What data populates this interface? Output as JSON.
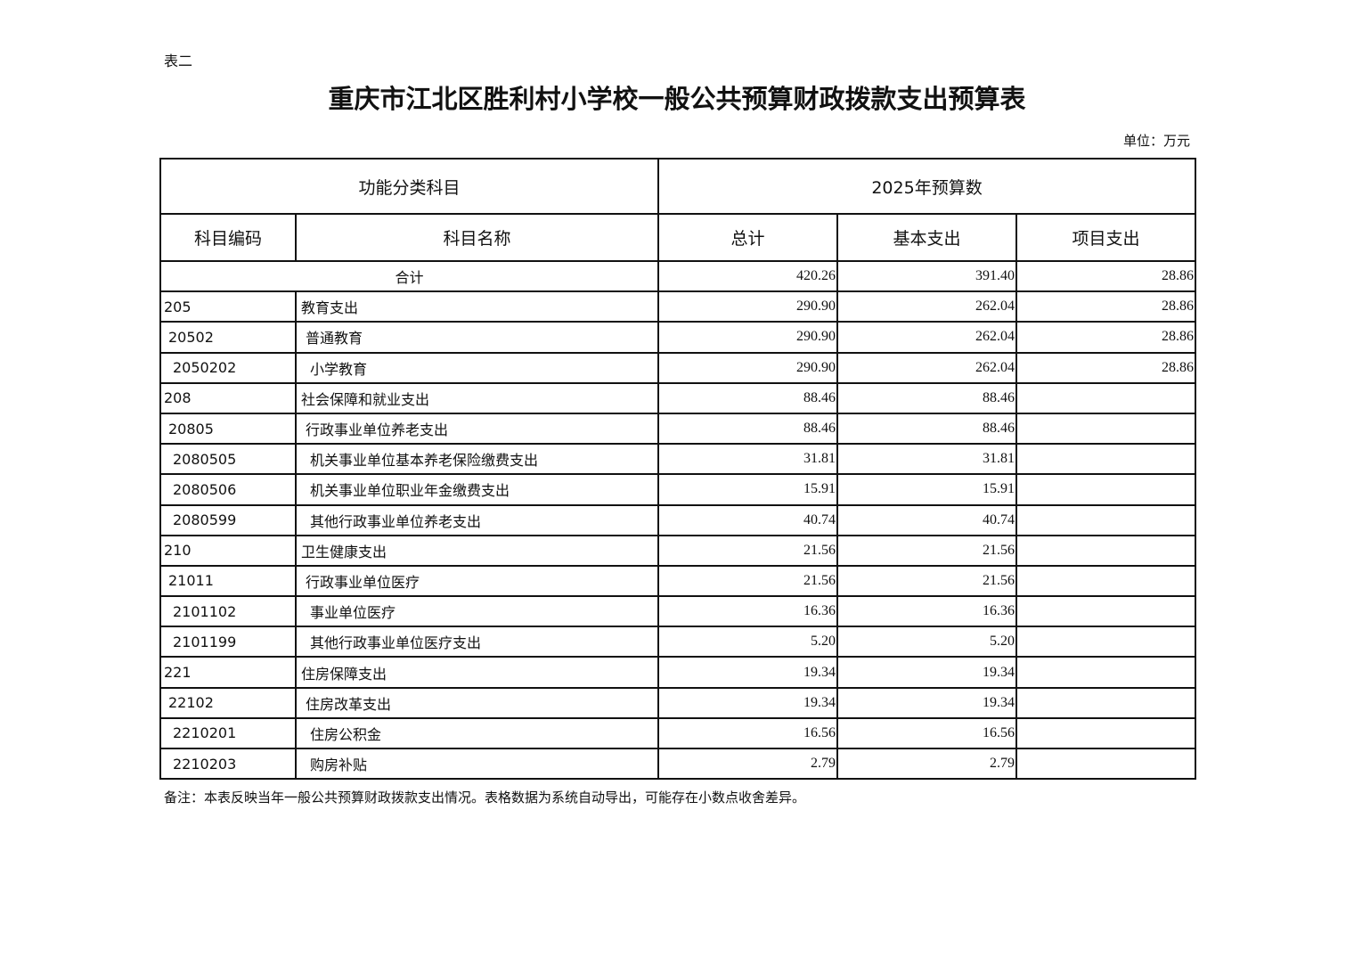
{
  "label": "表二",
  "title": "重庆市江北区胜利村小学校一般公共预算财政拨款支出预算表",
  "unit": "单位：万元",
  "table": {
    "group_headers": [
      "功能分类科目",
      "2025年预算数"
    ],
    "headers": [
      "科目编码",
      "科目名称",
      "总计",
      "基本支出",
      "项目支出"
    ],
    "total": {
      "label": "合计",
      "total": "420.26",
      "basic": "391.40",
      "project": "28.86"
    },
    "rows": [
      {
        "level": 1,
        "code": "205",
        "name": "教育支出",
        "total": "290.90",
        "basic": "262.04",
        "project": "28.86"
      },
      {
        "level": 2,
        "code": "20502",
        "name": "普通教育",
        "total": "290.90",
        "basic": "262.04",
        "project": "28.86"
      },
      {
        "level": 3,
        "code": "2050202",
        "name": "小学教育",
        "total": "290.90",
        "basic": "262.04",
        "project": "28.86"
      },
      {
        "level": 1,
        "code": "208",
        "name": "社会保障和就业支出",
        "total": "88.46",
        "basic": "88.46",
        "project": ""
      },
      {
        "level": 2,
        "code": "20805",
        "name": "行政事业单位养老支出",
        "total": "88.46",
        "basic": "88.46",
        "project": ""
      },
      {
        "level": 3,
        "code": "2080505",
        "name": "机关事业单位基本养老保险缴费支出",
        "total": "31.81",
        "basic": "31.81",
        "project": ""
      },
      {
        "level": 3,
        "code": "2080506",
        "name": "机关事业单位职业年金缴费支出",
        "total": "15.91",
        "basic": "15.91",
        "project": ""
      },
      {
        "level": 3,
        "code": "2080599",
        "name": "其他行政事业单位养老支出",
        "total": "40.74",
        "basic": "40.74",
        "project": ""
      },
      {
        "level": 1,
        "code": "210",
        "name": "卫生健康支出",
        "total": "21.56",
        "basic": "21.56",
        "project": ""
      },
      {
        "level": 2,
        "code": "21011",
        "name": "行政事业单位医疗",
        "total": "21.56",
        "basic": "21.56",
        "project": ""
      },
      {
        "level": 3,
        "code": "2101102",
        "name": "事业单位医疗",
        "total": "16.36",
        "basic": "16.36",
        "project": ""
      },
      {
        "level": 3,
        "code": "2101199",
        "name": "其他行政事业单位医疗支出",
        "total": "5.20",
        "basic": "5.20",
        "project": ""
      },
      {
        "level": 1,
        "code": "221",
        "name": "住房保障支出",
        "total": "19.34",
        "basic": "19.34",
        "project": ""
      },
      {
        "level": 2,
        "code": "22102",
        "name": "住房改革支出",
        "total": "19.34",
        "basic": "19.34",
        "project": ""
      },
      {
        "level": 3,
        "code": "2210201",
        "name": "住房公积金",
        "total": "16.56",
        "basic": "16.56",
        "project": ""
      },
      {
        "level": 3,
        "code": "2210203",
        "name": "购房补贴",
        "total": "2.79",
        "basic": "2.79",
        "project": ""
      }
    ]
  },
  "note": "备注：本表反映当年一般公共预算财政拨款支出情况。表格数据为系统自动导出，可能存在小数点收舍差异。"
}
